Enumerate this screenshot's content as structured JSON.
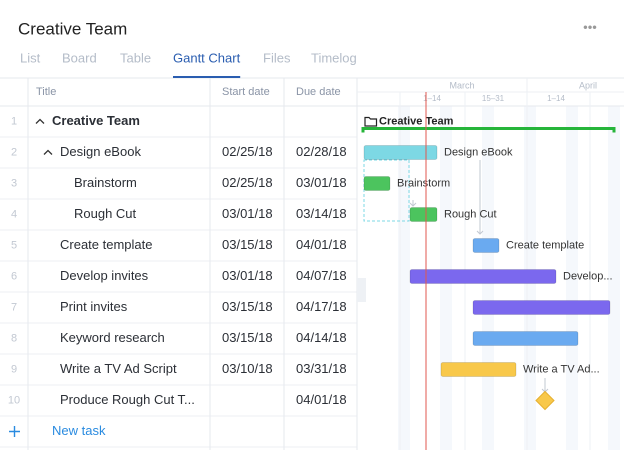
{
  "header": {
    "title": "Creative Team",
    "menu": "•••"
  },
  "tabs": [
    "List",
    "Board",
    "Table",
    "Gantt Chart",
    "Files",
    "Timelog"
  ],
  "active_tab": "Gantt Chart",
  "table": {
    "columns": [
      "Title",
      "Start date",
      "Due date"
    ],
    "rows": [
      {
        "number": 1,
        "title": "Creative Team"
      },
      {
        "number": 2,
        "title": "Design eBook",
        "start": "02/25/18",
        "due": "02/28/18"
      },
      {
        "number": 3,
        "title": "Brainstorm",
        "start": "02/25/18",
        "due": "03/01/18"
      },
      {
        "number": 4,
        "title": "Rough Cut",
        "start": "03/01/18",
        "due": "03/14/18"
      },
      {
        "number": 5,
        "title": "Create template",
        "start": "03/15/18",
        "due": "04/01/18"
      },
      {
        "number": 6,
        "title": "Develop invites",
        "start": "03/01/18",
        "due": "04/07/18"
      },
      {
        "number": 7,
        "title": "Print invites",
        "start": "03/15/18",
        "due": "04/17/18"
      },
      {
        "number": 8,
        "title": "Keyword research",
        "start": "03/15/18",
        "due": "04/14/18"
      },
      {
        "number": 9,
        "title": "Write a TV Ad Script",
        "start": "03/10/18",
        "due": "03/31/18"
      },
      {
        "number": 10,
        "title": "Produce Rough Cut T...",
        "due": "04/01/18"
      }
    ],
    "new_task": "New task"
  },
  "gantt": {
    "months": [
      "March",
      "April"
    ],
    "periods": [
      "1–14",
      "15–31",
      "1–14"
    ],
    "labels": [
      "Creative Team",
      "Design eBook",
      "Brainstorm",
      "Rough Cut",
      "Create template",
      "Develop...",
      "Write a TV Ad..."
    ]
  }
}
